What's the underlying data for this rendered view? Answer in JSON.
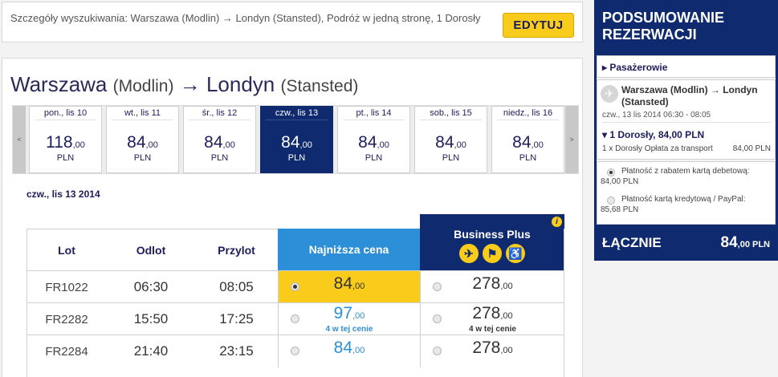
{
  "search": {
    "summary": "Szczegóły wyszukiwania: Warszawa (Modlin) → Londyn (Stansted), Podróż w jedną stronę, 1 Dorosły",
    "edit_label": "EDYTUJ"
  },
  "route": {
    "origin": "Warszawa",
    "origin_airport": "(Modlin)",
    "arrow": "→",
    "destination": "Londyn",
    "destination_airport": "(Stansted)"
  },
  "date_nav": {
    "prev": "<",
    "next": ">"
  },
  "dates": [
    {
      "day": "pon., lis 10",
      "price": "118",
      "cents": ",00",
      "currency": "PLN"
    },
    {
      "day": "wt., lis 11",
      "price": "84",
      "cents": ",00",
      "currency": "PLN"
    },
    {
      "day": "śr., lis 12",
      "price": "84",
      "cents": ",00",
      "currency": "PLN"
    },
    {
      "day": "czw., lis 13",
      "price": "84",
      "cents": ",00",
      "currency": "PLN",
      "selected": true
    },
    {
      "day": "pt., lis 14",
      "price": "84",
      "cents": ",00",
      "currency": "PLN"
    },
    {
      "day": "sob., lis 15",
      "price": "84",
      "cents": ",00",
      "currency": "PLN"
    },
    {
      "day": "niedz., lis 16",
      "price": "84",
      "cents": ",00",
      "currency": "PLN"
    }
  ],
  "selected_date_heading": "czw., lis 13 2014",
  "table": {
    "headers": {
      "flight": "Lot",
      "departure": "Odlot",
      "arrival": "Przylot",
      "lowest": "Najniższa cena",
      "business": "Business Plus"
    },
    "business_icons": [
      "fast-track-icon",
      "priority-boarding-icon",
      "reserved-seat-icon"
    ],
    "info_glyph": "i",
    "rows": [
      {
        "flight": "FR1022",
        "dep": "06:30",
        "arr": "08:05",
        "low_price": "84",
        "low_cents": ",00",
        "low_note": "",
        "low_selected": true,
        "biz_price": "278",
        "biz_cents": ",00",
        "biz_note": ""
      },
      {
        "flight": "FR2282",
        "dep": "15:50",
        "arr": "17:25",
        "low_price": "97",
        "low_cents": ",00",
        "low_note": "4 w tej cenie",
        "low_selected": false,
        "biz_price": "278",
        "biz_cents": ",00",
        "biz_note": "4 w tej cenie"
      },
      {
        "flight": "FR2284",
        "dep": "21:40",
        "arr": "23:15",
        "low_price": "84",
        "low_cents": ",00",
        "low_note": "",
        "low_selected": false,
        "biz_price": "278",
        "biz_cents": ",00",
        "biz_note": ""
      }
    ]
  },
  "summary": {
    "title_line1": "PODSUMOWANIE",
    "title_line2": "REZERWACJI",
    "passengers": "▸ Pasażerowie",
    "trip_route": "Warszawa (Modlin) → Londyn (Stansted)",
    "trip_when": "czw., 13 lis 2014 06:30 - 08:05",
    "fare_title": "▾ 1 Dorosły, 84,00 PLN",
    "fare_line_left": "1 x Dorosły Opłata za transport",
    "fare_line_right": "84,00 PLN",
    "payment": [
      {
        "label": "Płatność z rabatem kartą debetową:",
        "value": "84,00 PLN",
        "selected": true
      },
      {
        "label": "Płatność kartą kredytową / PayPal:",
        "value": "85,68 PLN",
        "selected": false
      }
    ],
    "total_label": "ŁĄCZNIE",
    "total_value": "84",
    "total_cents": ",00 PLN"
  },
  "colors": {
    "navy": "#0f2a6e",
    "accent_yellow": "#f9cb1a",
    "blue": "#2d8fd8"
  }
}
